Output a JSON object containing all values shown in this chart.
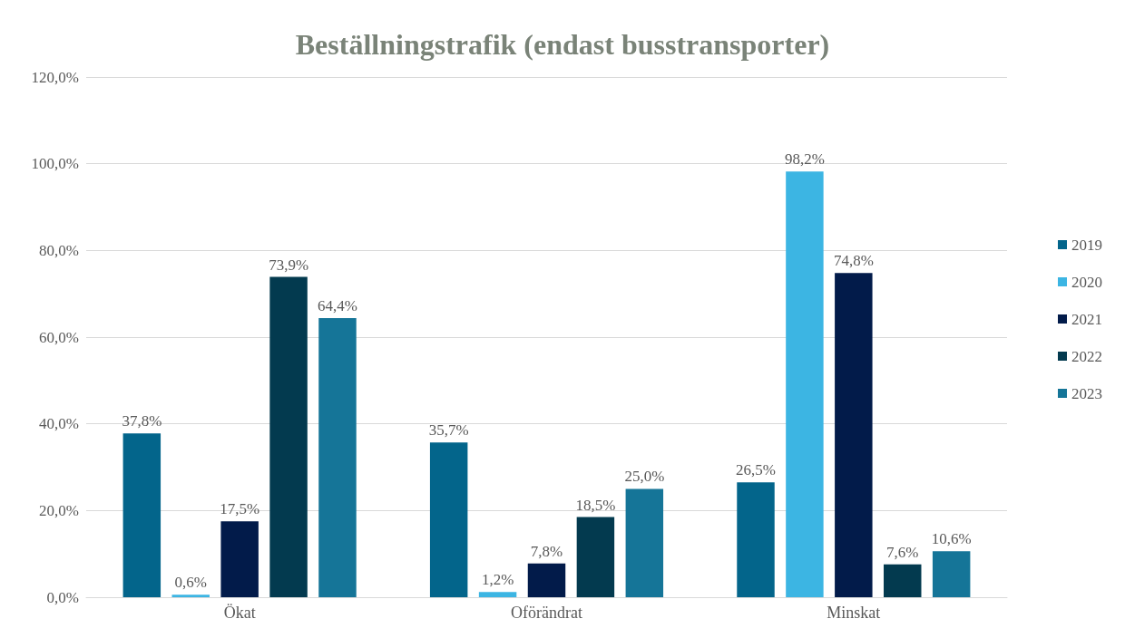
{
  "chart_data": {
    "type": "bar",
    "title": "Beställningstrafik (endast busstransporter)",
    "categories": [
      "Ökat",
      "Oförändrat",
      "Minskat"
    ],
    "series": [
      {
        "name": "2019",
        "color": "#03658b",
        "values": [
          37.8,
          35.7,
          26.5
        ],
        "value_labels": [
          "37,8%",
          "35,7%",
          "26,5%"
        ]
      },
      {
        "name": "2020",
        "color": "#3cb5e3",
        "values": [
          0.6,
          1.2,
          98.2
        ],
        "value_labels": [
          "0,6%",
          "1,2%",
          "98,2%"
        ]
      },
      {
        "name": "2021",
        "color": "#021b4a",
        "values": [
          17.5,
          7.8,
          74.8
        ],
        "value_labels": [
          "17,5%",
          "7,8%",
          "74,8%"
        ]
      },
      {
        "name": "2022",
        "color": "#033a4f",
        "values": [
          73.9,
          18.5,
          7.6
        ],
        "value_labels": [
          "73,9%",
          "18,5%",
          "7,6%"
        ]
      },
      {
        "name": "2023",
        "color": "#157598",
        "values": [
          64.4,
          25.0,
          10.6
        ],
        "value_labels": [
          "64,4%",
          "25,0%",
          "10,6%"
        ]
      }
    ],
    "ylim": [
      0,
      120
    ],
    "yticks": [
      {
        "value": 0,
        "label": "0,0%"
      },
      {
        "value": 20,
        "label": "20,0%"
      },
      {
        "value": 40,
        "label": "40,0%"
      },
      {
        "value": 60,
        "label": "60,0%"
      },
      {
        "value": 80,
        "label": "80,0%"
      },
      {
        "value": 100,
        "label": "100,0%"
      },
      {
        "value": 120,
        "label": "120,0%"
      }
    ],
    "grid": "y",
    "legend": "right"
  }
}
